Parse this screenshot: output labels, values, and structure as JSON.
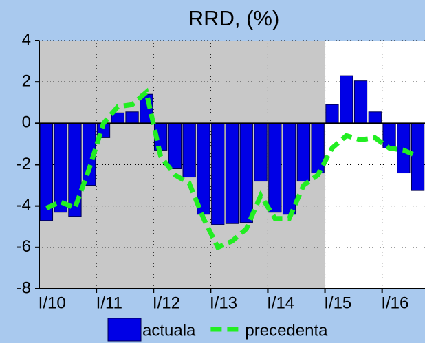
{
  "chart_data": {
    "type": "bar_line",
    "title": "RRD, (%)",
    "categories": [
      "I/10",
      null,
      null,
      null,
      "I/11",
      null,
      null,
      null,
      "I/12",
      null,
      null,
      null,
      "I/13",
      null,
      null,
      null,
      "I/14",
      null,
      null,
      null,
      "I/15",
      null,
      null,
      null,
      "I/16",
      null,
      null
    ],
    "series": [
      {
        "name": "actuala",
        "type": "bar",
        "color": "#0000e6",
        "values": [
          -4.7,
          -4.3,
          -4.5,
          -3.0,
          -0.7,
          0.5,
          0.55,
          1.4,
          -1.3,
          -2.2,
          -2.6,
          -4.4,
          -4.9,
          -4.85,
          -4.8,
          -2.8,
          -4.3,
          -4.4,
          -2.8,
          -2.4,
          0.9,
          2.3,
          2.05,
          0.55,
          -1.2,
          -2.4,
          -3.25
        ]
      },
      {
        "name": "precedenta",
        "type": "line",
        "color": "#22ee22",
        "values": [
          -4.1,
          -3.8,
          -4.1,
          -2.2,
          0.0,
          0.8,
          0.9,
          1.5,
          -1.6,
          -2.5,
          -2.9,
          -4.6,
          -6.0,
          -5.7,
          -5.1,
          -3.5,
          -4.6,
          -4.6,
          -3.0,
          -2.5,
          -1.2,
          -0.6,
          -0.8,
          -0.7,
          -1.2,
          -1.3,
          -1.6
        ]
      }
    ],
    "ylim": [
      -8,
      4
    ],
    "yticks": [
      4,
      2,
      0,
      -2,
      -4,
      -6,
      -8
    ],
    "grid": true
  }
}
